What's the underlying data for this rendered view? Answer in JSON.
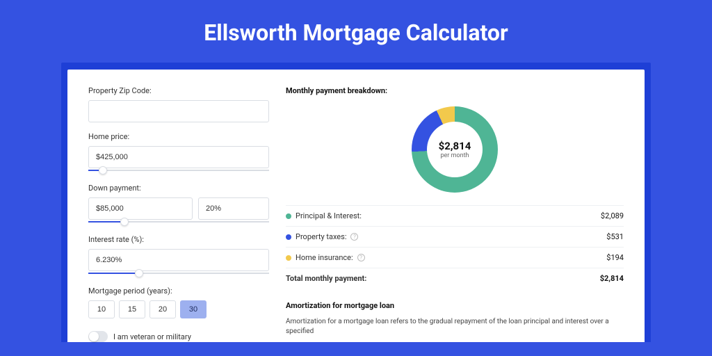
{
  "page": {
    "title": "Ellsworth Mortgage Calculator",
    "background_color": "#3452e1",
    "shadow_color": "#1e3fd6",
    "card_background": "#ffffff"
  },
  "form": {
    "zip_label": "Property Zip Code:",
    "zip_value": "",
    "home_price_label": "Home price:",
    "home_price_value": "$425,000",
    "home_price_slider_pct": 8,
    "down_payment_label": "Down payment:",
    "down_payment_value": "$85,000",
    "down_payment_pct_value": "20%",
    "down_payment_slider_pct": 20,
    "interest_label": "Interest rate (%):",
    "interest_value": "6.230%",
    "interest_slider_pct": 28,
    "period_label": "Mortgage period (years):",
    "periods": [
      "10",
      "15",
      "20",
      "30"
    ],
    "period_selected": "30",
    "veteran_label": "I am veteran or military",
    "veteran_on": false
  },
  "breakdown": {
    "title": "Monthly payment breakdown:",
    "donut": {
      "center_value": "$2,814",
      "center_sub": "per month",
      "segments": [
        {
          "label": "Principal & Interest",
          "color": "#4fb595",
          "degrees": 267
        },
        {
          "label": "Property taxes",
          "color": "#3452e1",
          "degrees": 68
        },
        {
          "label": "Home insurance",
          "color": "#f2c94c",
          "degrees": 25
        }
      ]
    },
    "rows": [
      {
        "dot": "#4fb595",
        "label": "Principal & Interest:",
        "info": false,
        "value": "$2,089"
      },
      {
        "dot": "#3452e1",
        "label": "Property taxes:",
        "info": true,
        "value": "$531"
      },
      {
        "dot": "#f2c94c",
        "label": "Home insurance:",
        "info": true,
        "value": "$194"
      }
    ],
    "total_label": "Total monthly payment:",
    "total_value": "$2,814"
  },
  "amortization": {
    "title": "Amortization for mortgage loan",
    "text": "Amortization for a mortgage loan refers to the gradual repayment of the loan principal and interest over a specified"
  }
}
